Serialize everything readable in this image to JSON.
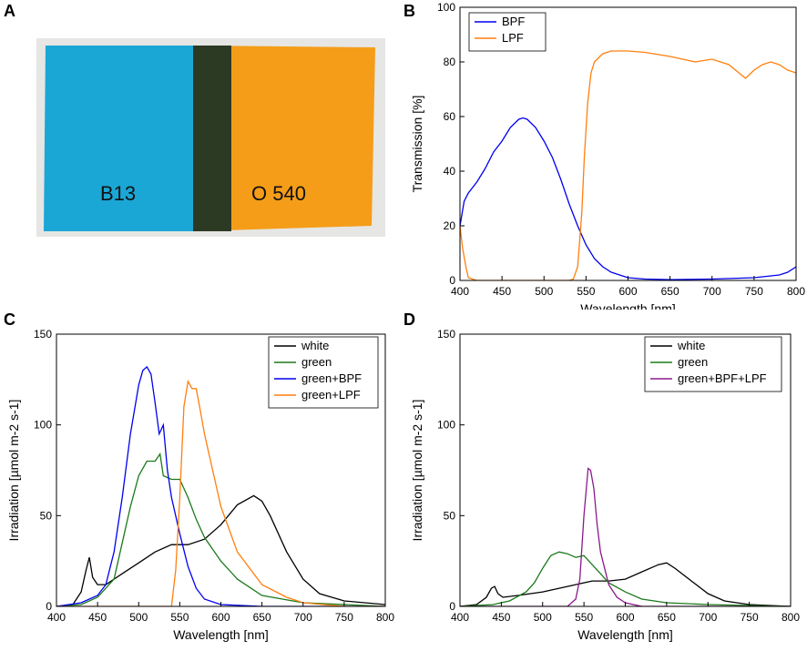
{
  "panels": {
    "a": {
      "letter": "A",
      "filter_left_label": "B13",
      "filter_right_label": "O 540"
    },
    "b": {
      "letter": "B"
    },
    "c": {
      "letter": "C"
    },
    "d": {
      "letter": "D"
    }
  },
  "colors": {
    "blue_filter": "#1aa7d6",
    "orange_filter": "#f5a01a",
    "overlap": "#2a3522",
    "white": "#000000",
    "green": "#1b7a1b",
    "bpf": "#0000ee",
    "lpf": "#ff7f0e",
    "combo": "#8b1a8b"
  },
  "chart_data": [
    {
      "id": "B",
      "type": "line",
      "xlabel": "Wavelength [nm]",
      "ylabel": "Transmission [%]",
      "xlim": [
        400,
        800
      ],
      "ylim": [
        0,
        100
      ],
      "xticks": [
        400,
        450,
        500,
        550,
        600,
        650,
        700,
        750,
        800
      ],
      "yticks": [
        0,
        20,
        40,
        60,
        80,
        100
      ],
      "legend": [
        "BPF",
        "LPF"
      ],
      "series": [
        {
          "name": "BPF",
          "color": "#0000ee",
          "x": [
            400,
            405,
            410,
            420,
            430,
            440,
            450,
            460,
            470,
            475,
            480,
            490,
            500,
            510,
            520,
            530,
            540,
            550,
            560,
            570,
            580,
            600,
            620,
            650,
            700,
            750,
            780,
            790,
            800
          ],
          "y": [
            20,
            29,
            32,
            36,
            41,
            47,
            51,
            56,
            59,
            59.5,
            59,
            56,
            51,
            45,
            37,
            28,
            20,
            13,
            8,
            5,
            3,
            1,
            0.5,
            0.3,
            0.5,
            1,
            2,
            3,
            5
          ]
        },
        {
          "name": "LPF",
          "color": "#ff7f0e",
          "x": [
            400,
            403,
            407,
            410,
            415,
            420,
            500,
            530,
            535,
            540,
            545,
            548,
            552,
            556,
            560,
            570,
            580,
            600,
            620,
            650,
            680,
            700,
            720,
            740,
            750,
            760,
            770,
            780,
            790,
            800
          ],
          "y": [
            20,
            12,
            5,
            1,
            0.5,
            0,
            0,
            0,
            0.5,
            5,
            25,
            45,
            65,
            76,
            80,
            83,
            84,
            84,
            83.5,
            82,
            80,
            81,
            79,
            74,
            77,
            79,
            80,
            79,
            77,
            76
          ]
        }
      ]
    },
    {
      "id": "C",
      "type": "line",
      "xlabel": "Wavelength [nm]",
      "ylabel": "Irradiation [µmol m-2 s-1]",
      "xlim": [
        400,
        800
      ],
      "ylim": [
        0,
        150
      ],
      "xticks": [
        400,
        450,
        500,
        550,
        600,
        650,
        700,
        750,
        800
      ],
      "yticks": [
        0,
        50,
        100,
        150
      ],
      "legend": [
        "white",
        "green",
        "green+BPF",
        "green+LPF"
      ],
      "series": [
        {
          "name": "white",
          "color": "#000000",
          "x": [
            400,
            420,
            430,
            436,
            440,
            444,
            450,
            460,
            480,
            500,
            520,
            540,
            560,
            580,
            600,
            620,
            640,
            650,
            660,
            680,
            700,
            720,
            750,
            800
          ],
          "y": [
            0,
            1,
            8,
            20,
            27,
            16,
            12,
            12,
            18,
            24,
            30,
            34,
            34,
            37,
            45,
            56,
            61,
            58,
            50,
            30,
            15,
            7,
            3,
            1
          ]
        },
        {
          "name": "green",
          "color": "#1b7a1b",
          "x": [
            400,
            430,
            450,
            470,
            480,
            490,
            500,
            510,
            520,
            526,
            530,
            540,
            550,
            560,
            570,
            580,
            600,
            620,
            650,
            700,
            800
          ],
          "y": [
            0,
            1,
            5,
            15,
            35,
            55,
            72,
            80,
            80,
            84,
            72,
            70,
            70,
            60,
            48,
            38,
            25,
            15,
            6,
            2,
            0
          ]
        },
        {
          "name": "green+BPF",
          "color": "#0000ee",
          "x": [
            400,
            430,
            450,
            460,
            470,
            480,
            490,
            500,
            505,
            510,
            515,
            520,
            525,
            530,
            535,
            540,
            550,
            560,
            570,
            580,
            600,
            650,
            800
          ],
          "y": [
            0,
            2,
            6,
            12,
            30,
            60,
            95,
            122,
            130,
            132,
            128,
            112,
            95,
            100,
            75,
            60,
            40,
            22,
            10,
            4,
            1,
            0,
            0
          ]
        },
        {
          "name": "green+LPF",
          "color": "#ff7f0e",
          "x": [
            400,
            540,
            545,
            550,
            555,
            560,
            565,
            570,
            575,
            580,
            590,
            600,
            620,
            650,
            680,
            700,
            750,
            800
          ],
          "y": [
            0,
            0,
            20,
            60,
            110,
            124,
            120,
            120,
            108,
            95,
            75,
            55,
            30,
            12,
            5,
            2,
            0,
            0
          ]
        }
      ]
    },
    {
      "id": "D",
      "type": "line",
      "xlabel": "Wavelength [nm]",
      "ylabel": "Irradiation [µmol m-2 s-1]",
      "xlim": [
        400,
        800
      ],
      "ylim": [
        0,
        150
      ],
      "xticks": [
        400,
        450,
        500,
        550,
        600,
        650,
        700,
        750,
        800
      ],
      "yticks": [
        0,
        50,
        100,
        150
      ],
      "legend": [
        "white",
        "green",
        "green+BPF+LPF"
      ],
      "series": [
        {
          "name": "white",
          "color": "#000000",
          "x": [
            400,
            420,
            432,
            438,
            442,
            446,
            452,
            470,
            500,
            530,
            560,
            580,
            600,
            620,
            640,
            650,
            660,
            680,
            700,
            720,
            750,
            800
          ],
          "y": [
            0,
            1,
            5,
            10,
            11,
            7,
            5,
            6,
            8,
            11,
            14,
            14,
            15,
            19,
            23,
            24,
            21,
            14,
            7,
            3,
            1,
            0
          ]
        },
        {
          "name": "green",
          "color": "#1b7a1b",
          "x": [
            400,
            440,
            460,
            480,
            490,
            500,
            510,
            520,
            530,
            540,
            550,
            560,
            570,
            580,
            600,
            620,
            650,
            700,
            800
          ],
          "y": [
            0,
            1,
            3,
            8,
            13,
            21,
            28,
            30,
            29,
            27,
            28,
            23,
            18,
            13,
            8,
            4,
            2,
            1,
            0
          ]
        },
        {
          "name": "green+BPF+LPF",
          "color": "#8b1a8b",
          "x": [
            400,
            530,
            540,
            545,
            550,
            555,
            558,
            562,
            566,
            570,
            580,
            590,
            600,
            620,
            800
          ],
          "y": [
            0,
            0,
            4,
            15,
            50,
            76,
            75,
            65,
            45,
            30,
            12,
            5,
            2,
            0,
            0
          ]
        }
      ]
    }
  ]
}
